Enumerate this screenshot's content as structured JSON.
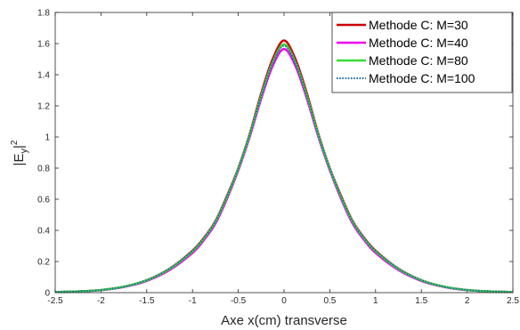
{
  "chart_data": {
    "type": "line",
    "title": "",
    "xlabel": "Axe x(cm) transverse",
    "ylabel_main": "|E",
    "ylabel_sub": "y",
    "ylabel_sup": "2",
    "xlim": [
      -2.5,
      2.5
    ],
    "ylim": [
      0,
      1.8
    ],
    "xticks": [
      -2.5,
      -2,
      -1.5,
      -1,
      -0.5,
      0,
      0.5,
      1,
      1.5,
      2,
      2.5
    ],
    "yticks": [
      0,
      0.2,
      0.4,
      0.6,
      0.8,
      1,
      1.2,
      1.4,
      1.6,
      1.8
    ],
    "xtick_labels": [
      "-2.5",
      "-2",
      "-1.5",
      "-1",
      "-0.5",
      "0",
      "0.5",
      "1",
      "1.5",
      "2",
      "2.5"
    ],
    "ytick_labels": [
      "0",
      "0.2",
      "0.4",
      "0.6",
      "0.8",
      "1",
      "1.2",
      "1.4",
      "1.6",
      "1.8"
    ],
    "grid": false,
    "legend_position": "top-right",
    "x": [
      -2.5,
      -2.25,
      -2.0,
      -1.75,
      -1.5,
      -1.25,
      -1.0,
      -0.875,
      -0.75,
      -0.625,
      -0.5,
      -0.375,
      -0.25,
      -0.125,
      0.0,
      0.125,
      0.25,
      0.375,
      0.5,
      0.625,
      0.75,
      0.875,
      1.0,
      1.25,
      1.5,
      1.75,
      2.0,
      2.25,
      2.5
    ],
    "series": [
      {
        "name": "Methode C: M=30",
        "color": "#cc0000",
        "dash": "solid",
        "values": [
          0.004,
          0.008,
          0.017,
          0.038,
          0.08,
          0.154,
          0.27,
          0.353,
          0.46,
          0.62,
          0.8,
          1.02,
          1.28,
          1.5,
          1.62,
          1.5,
          1.28,
          1.02,
          0.8,
          0.62,
          0.46,
          0.353,
          0.27,
          0.154,
          0.08,
          0.038,
          0.017,
          0.008,
          0.004
        ]
      },
      {
        "name": "Methode C: M=40",
        "color": "#ee00ee",
        "dash": "solid",
        "values": [
          0.004,
          0.008,
          0.016,
          0.036,
          0.075,
          0.145,
          0.255,
          0.338,
          0.443,
          0.6,
          0.785,
          1.0,
          1.245,
          1.455,
          1.565,
          1.455,
          1.245,
          1.0,
          0.785,
          0.6,
          0.443,
          0.338,
          0.255,
          0.145,
          0.075,
          0.036,
          0.016,
          0.008,
          0.004
        ]
      },
      {
        "name": "Methode C: M=80",
        "color": "#33dd33",
        "dash": "solid",
        "values": [
          0.004,
          0.008,
          0.017,
          0.038,
          0.079,
          0.152,
          0.265,
          0.348,
          0.455,
          0.612,
          0.795,
          1.013,
          1.265,
          1.48,
          1.595,
          1.48,
          1.265,
          1.013,
          0.795,
          0.612,
          0.455,
          0.348,
          0.265,
          0.152,
          0.079,
          0.038,
          0.017,
          0.008,
          0.004
        ]
      },
      {
        "name": "Methode C: M=100",
        "color": "#1f6fa8",
        "dash": "dotted",
        "values": [
          0.004,
          0.008,
          0.017,
          0.038,
          0.08,
          0.155,
          0.268,
          0.35,
          0.457,
          0.614,
          0.797,
          1.015,
          1.262,
          1.475,
          1.585,
          1.475,
          1.262,
          1.015,
          0.797,
          0.614,
          0.457,
          0.35,
          0.268,
          0.155,
          0.08,
          0.038,
          0.017,
          0.008,
          0.004
        ]
      }
    ]
  }
}
